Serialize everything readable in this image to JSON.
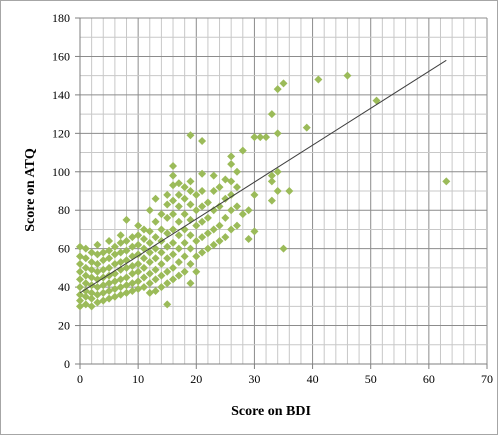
{
  "chart_data": {
    "type": "scatter",
    "xlabel": "Score on BDI",
    "ylabel": "Score on ATQ",
    "xlim": [
      0,
      70
    ],
    "ylim": [
      0,
      180
    ],
    "xticks": [
      0,
      10,
      20,
      30,
      40,
      50,
      60,
      70
    ],
    "yticks": [
      0,
      20,
      40,
      60,
      80,
      100,
      120,
      140,
      160,
      180
    ],
    "x_minor_step": 2,
    "y_minor_step": 10,
    "grid": true,
    "marker": "diamond",
    "marker_color": "#9bbb59",
    "trendline": {
      "type": "linear",
      "from": [
        0,
        37
      ],
      "to": [
        63,
        158
      ],
      "color": "#404040"
    },
    "points": [
      [
        0,
        30
      ],
      [
        0,
        33
      ],
      [
        0,
        36
      ],
      [
        0,
        40
      ],
      [
        0,
        44
      ],
      [
        0,
        48
      ],
      [
        0,
        52
      ],
      [
        0,
        56
      ],
      [
        0,
        61
      ],
      [
        1,
        31
      ],
      [
        1,
        35
      ],
      [
        1,
        38
      ],
      [
        1,
        42
      ],
      [
        1,
        46
      ],
      [
        1,
        50
      ],
      [
        1,
        55
      ],
      [
        1,
        60
      ],
      [
        2,
        30
      ],
      [
        2,
        34
      ],
      [
        2,
        37
      ],
      [
        2,
        41
      ],
      [
        2,
        45
      ],
      [
        2,
        49
      ],
      [
        2,
        53
      ],
      [
        2,
        58
      ],
      [
        3,
        32
      ],
      [
        3,
        36
      ],
      [
        3,
        40
      ],
      [
        3,
        44
      ],
      [
        3,
        48
      ],
      [
        3,
        52
      ],
      [
        3,
        57
      ],
      [
        3,
        62
      ],
      [
        4,
        33
      ],
      [
        4,
        37
      ],
      [
        4,
        41
      ],
      [
        4,
        45
      ],
      [
        4,
        49
      ],
      [
        4,
        54
      ],
      [
        4,
        58
      ],
      [
        5,
        34
      ],
      [
        5,
        38
      ],
      [
        5,
        42
      ],
      [
        5,
        46
      ],
      [
        5,
        50
      ],
      [
        5,
        55
      ],
      [
        5,
        59
      ],
      [
        5,
        64
      ],
      [
        6,
        35
      ],
      [
        6,
        39
      ],
      [
        6,
        43
      ],
      [
        6,
        47
      ],
      [
        6,
        52
      ],
      [
        6,
        57
      ],
      [
        6,
        61
      ],
      [
        7,
        36
      ],
      [
        7,
        40
      ],
      [
        7,
        44
      ],
      [
        7,
        49
      ],
      [
        7,
        53
      ],
      [
        7,
        58
      ],
      [
        7,
        63
      ],
      [
        7,
        67
      ],
      [
        8,
        37
      ],
      [
        8,
        41
      ],
      [
        8,
        45
      ],
      [
        8,
        50
      ],
      [
        8,
        54
      ],
      [
        8,
        59
      ],
      [
        8,
        64
      ],
      [
        8,
        75
      ],
      [
        9,
        38
      ],
      [
        9,
        42
      ],
      [
        9,
        47
      ],
      [
        9,
        51
      ],
      [
        9,
        56
      ],
      [
        9,
        61
      ],
      [
        9,
        66
      ],
      [
        10,
        39
      ],
      [
        10,
        43
      ],
      [
        10,
        48
      ],
      [
        10,
        52
      ],
      [
        10,
        57
      ],
      [
        10,
        62
      ],
      [
        10,
        67
      ],
      [
        10,
        72
      ],
      [
        11,
        40
      ],
      [
        11,
        45
      ],
      [
        11,
        50
      ],
      [
        11,
        55
      ],
      [
        11,
        60
      ],
      [
        11,
        65
      ],
      [
        11,
        70
      ],
      [
        12,
        37
      ],
      [
        12,
        42
      ],
      [
        12,
        47
      ],
      [
        12,
        53
      ],
      [
        12,
        58
      ],
      [
        12,
        63
      ],
      [
        12,
        69
      ],
      [
        12,
        80
      ],
      [
        13,
        38
      ],
      [
        13,
        44
      ],
      [
        13,
        49
      ],
      [
        13,
        55
      ],
      [
        13,
        60
      ],
      [
        13,
        66
      ],
      [
        13,
        74
      ],
      [
        13,
        86
      ],
      [
        14,
        40
      ],
      [
        14,
        46
      ],
      [
        14,
        52
      ],
      [
        14,
        58
      ],
      [
        14,
        64
      ],
      [
        14,
        70
      ],
      [
        14,
        78
      ],
      [
        15,
        31
      ],
      [
        15,
        42
      ],
      [
        15,
        48
      ],
      [
        15,
        55
      ],
      [
        15,
        61
      ],
      [
        15,
        68
      ],
      [
        15,
        76
      ],
      [
        15,
        83
      ],
      [
        15,
        88
      ],
      [
        16,
        44
      ],
      [
        16,
        50
      ],
      [
        16,
        57
      ],
      [
        16,
        63
      ],
      [
        16,
        70
      ],
      [
        16,
        78
      ],
      [
        16,
        85
      ],
      [
        16,
        93
      ],
      [
        16,
        98
      ],
      [
        16,
        103
      ],
      [
        17,
        46
      ],
      [
        17,
        53
      ],
      [
        17,
        60
      ],
      [
        17,
        67
      ],
      [
        17,
        74
      ],
      [
        17,
        82
      ],
      [
        17,
        88
      ],
      [
        17,
        94
      ],
      [
        18,
        48
      ],
      [
        18,
        56
      ],
      [
        18,
        63
      ],
      [
        18,
        70
      ],
      [
        18,
        78
      ],
      [
        18,
        86
      ],
      [
        18,
        92
      ],
      [
        19,
        42
      ],
      [
        19,
        52
      ],
      [
        19,
        60
      ],
      [
        19,
        67
      ],
      [
        19,
        75
      ],
      [
        19,
        83
      ],
      [
        19,
        90
      ],
      [
        19,
        95
      ],
      [
        19,
        119
      ],
      [
        20,
        48
      ],
      [
        20,
        56
      ],
      [
        20,
        64
      ],
      [
        20,
        72
      ],
      [
        20,
        80
      ],
      [
        20,
        88
      ],
      [
        21,
        58
      ],
      [
        21,
        66
      ],
      [
        21,
        74
      ],
      [
        21,
        82
      ],
      [
        21,
        90
      ],
      [
        21,
        99
      ],
      [
        21,
        116
      ],
      [
        22,
        60
      ],
      [
        22,
        68
      ],
      [
        22,
        76
      ],
      [
        22,
        84
      ],
      [
        23,
        62
      ],
      [
        23,
        70
      ],
      [
        23,
        80
      ],
      [
        23,
        90
      ],
      [
        23,
        98
      ],
      [
        24,
        64
      ],
      [
        24,
        72
      ],
      [
        24,
        82
      ],
      [
        24,
        92
      ],
      [
        25,
        66
      ],
      [
        25,
        76
      ],
      [
        25,
        86
      ],
      [
        25,
        96
      ],
      [
        26,
        70
      ],
      [
        26,
        80
      ],
      [
        26,
        88
      ],
      [
        26,
        95
      ],
      [
        26,
        104
      ],
      [
        26,
        108
      ],
      [
        27,
        72
      ],
      [
        27,
        82
      ],
      [
        27,
        92
      ],
      [
        27,
        100
      ],
      [
        28,
        78
      ],
      [
        28,
        111
      ],
      [
        29,
        65
      ],
      [
        29,
        80
      ],
      [
        30,
        69
      ],
      [
        30,
        88
      ],
      [
        30,
        118
      ],
      [
        31,
        118
      ],
      [
        32,
        118
      ],
      [
        33,
        85
      ],
      [
        33,
        95
      ],
      [
        33,
        98
      ],
      [
        33,
        130
      ],
      [
        34,
        90
      ],
      [
        34,
        100
      ],
      [
        34,
        120
      ],
      [
        34,
        143
      ],
      [
        35,
        60
      ],
      [
        35,
        146
      ],
      [
        36,
        90
      ],
      [
        39,
        123
      ],
      [
        41,
        148
      ],
      [
        46,
        150
      ],
      [
        51,
        137
      ],
      [
        63,
        95
      ]
    ]
  }
}
